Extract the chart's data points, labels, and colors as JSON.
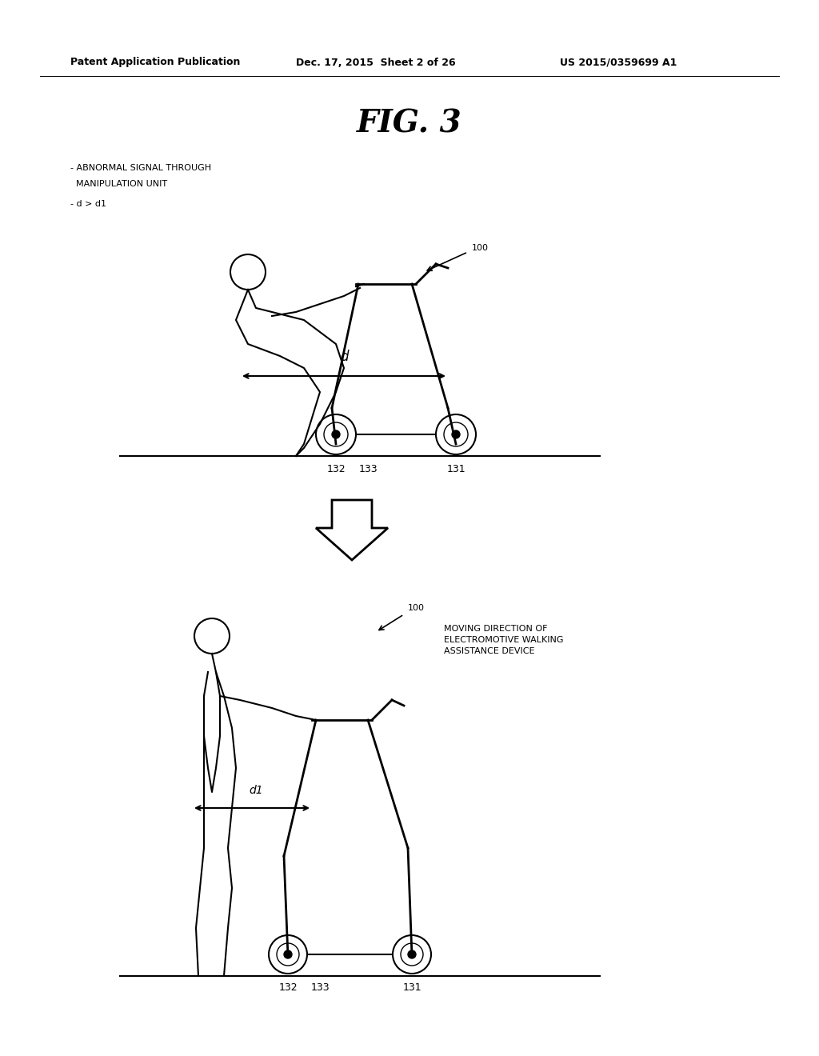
{
  "bg_color": "#ffffff",
  "text_color": "#000000",
  "header_left": "Patent Application Publication",
  "header_mid": "Dec. 17, 2015  Sheet 2 of 26",
  "header_right": "US 2015/0359699 A1",
  "fig_title": "FIG. 3",
  "label1_line1": "- ABNORMAL SIGNAL THROUGH",
  "label1_line2": "  MANIPULATION UNIT",
  "label1_line3": "- d > d1",
  "label_100_top": "100",
  "label_132": "132",
  "label_133": "133",
  "label_131": "131",
  "label_d_top": "d",
  "label_d_bottom": "d1",
  "label_moving": "MOVING DIRECTION OF\nELECTROMOTIVE WALKING\nASSISTANCE DEVICE",
  "label_100_bottom": "100",
  "label_132b": "132",
  "label_133b": "133",
  "label_131b": "131"
}
